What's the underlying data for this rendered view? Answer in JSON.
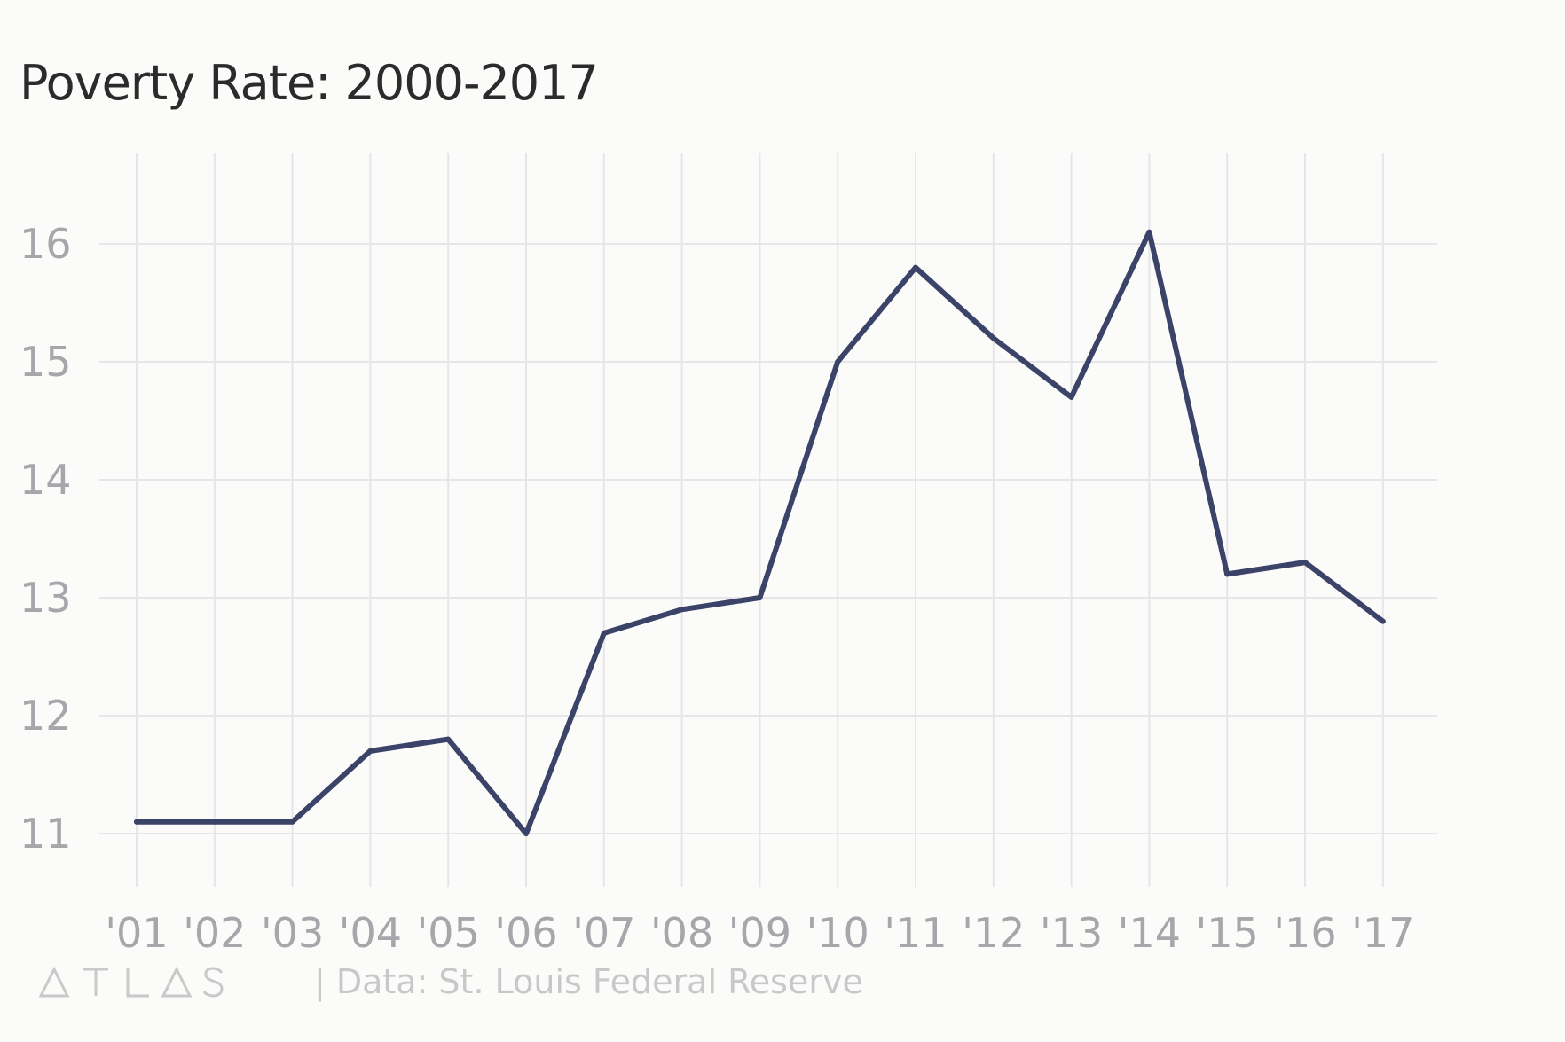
{
  "title": "Poverty Rate: 2000-2017",
  "brand": "ATLAS",
  "source_separator": "|",
  "source": "Data: St. Louis Federal Reserve",
  "colors": {
    "line": "#3b4368",
    "grid": "#e6e6ea",
    "tick_label": "#a7a7ab",
    "background": "#fbfbfa"
  },
  "chart_data": {
    "type": "line",
    "title": "Poverty Rate: 2000-2017",
    "xlabel": "",
    "ylabel": "",
    "categories": [
      "'01",
      "'02",
      "'03",
      "'04",
      "'05",
      "'06",
      "'07",
      "'08",
      "'09",
      "'10",
      "'11",
      "'12",
      "'13",
      "'14",
      "'15",
      "'16",
      "'17"
    ],
    "series": [
      {
        "values": [
          11.1,
          11.1,
          11.1,
          11.7,
          11.8,
          11.0,
          12.7,
          12.9,
          13.0,
          15.0,
          15.8,
          15.2,
          14.7,
          16.1,
          13.2,
          13.3,
          12.8
        ]
      }
    ],
    "yticks": [
      11,
      12,
      13,
      14,
      15,
      16
    ],
    "ylim": [
      11,
      16
    ],
    "grid": true,
    "legend": "none"
  }
}
